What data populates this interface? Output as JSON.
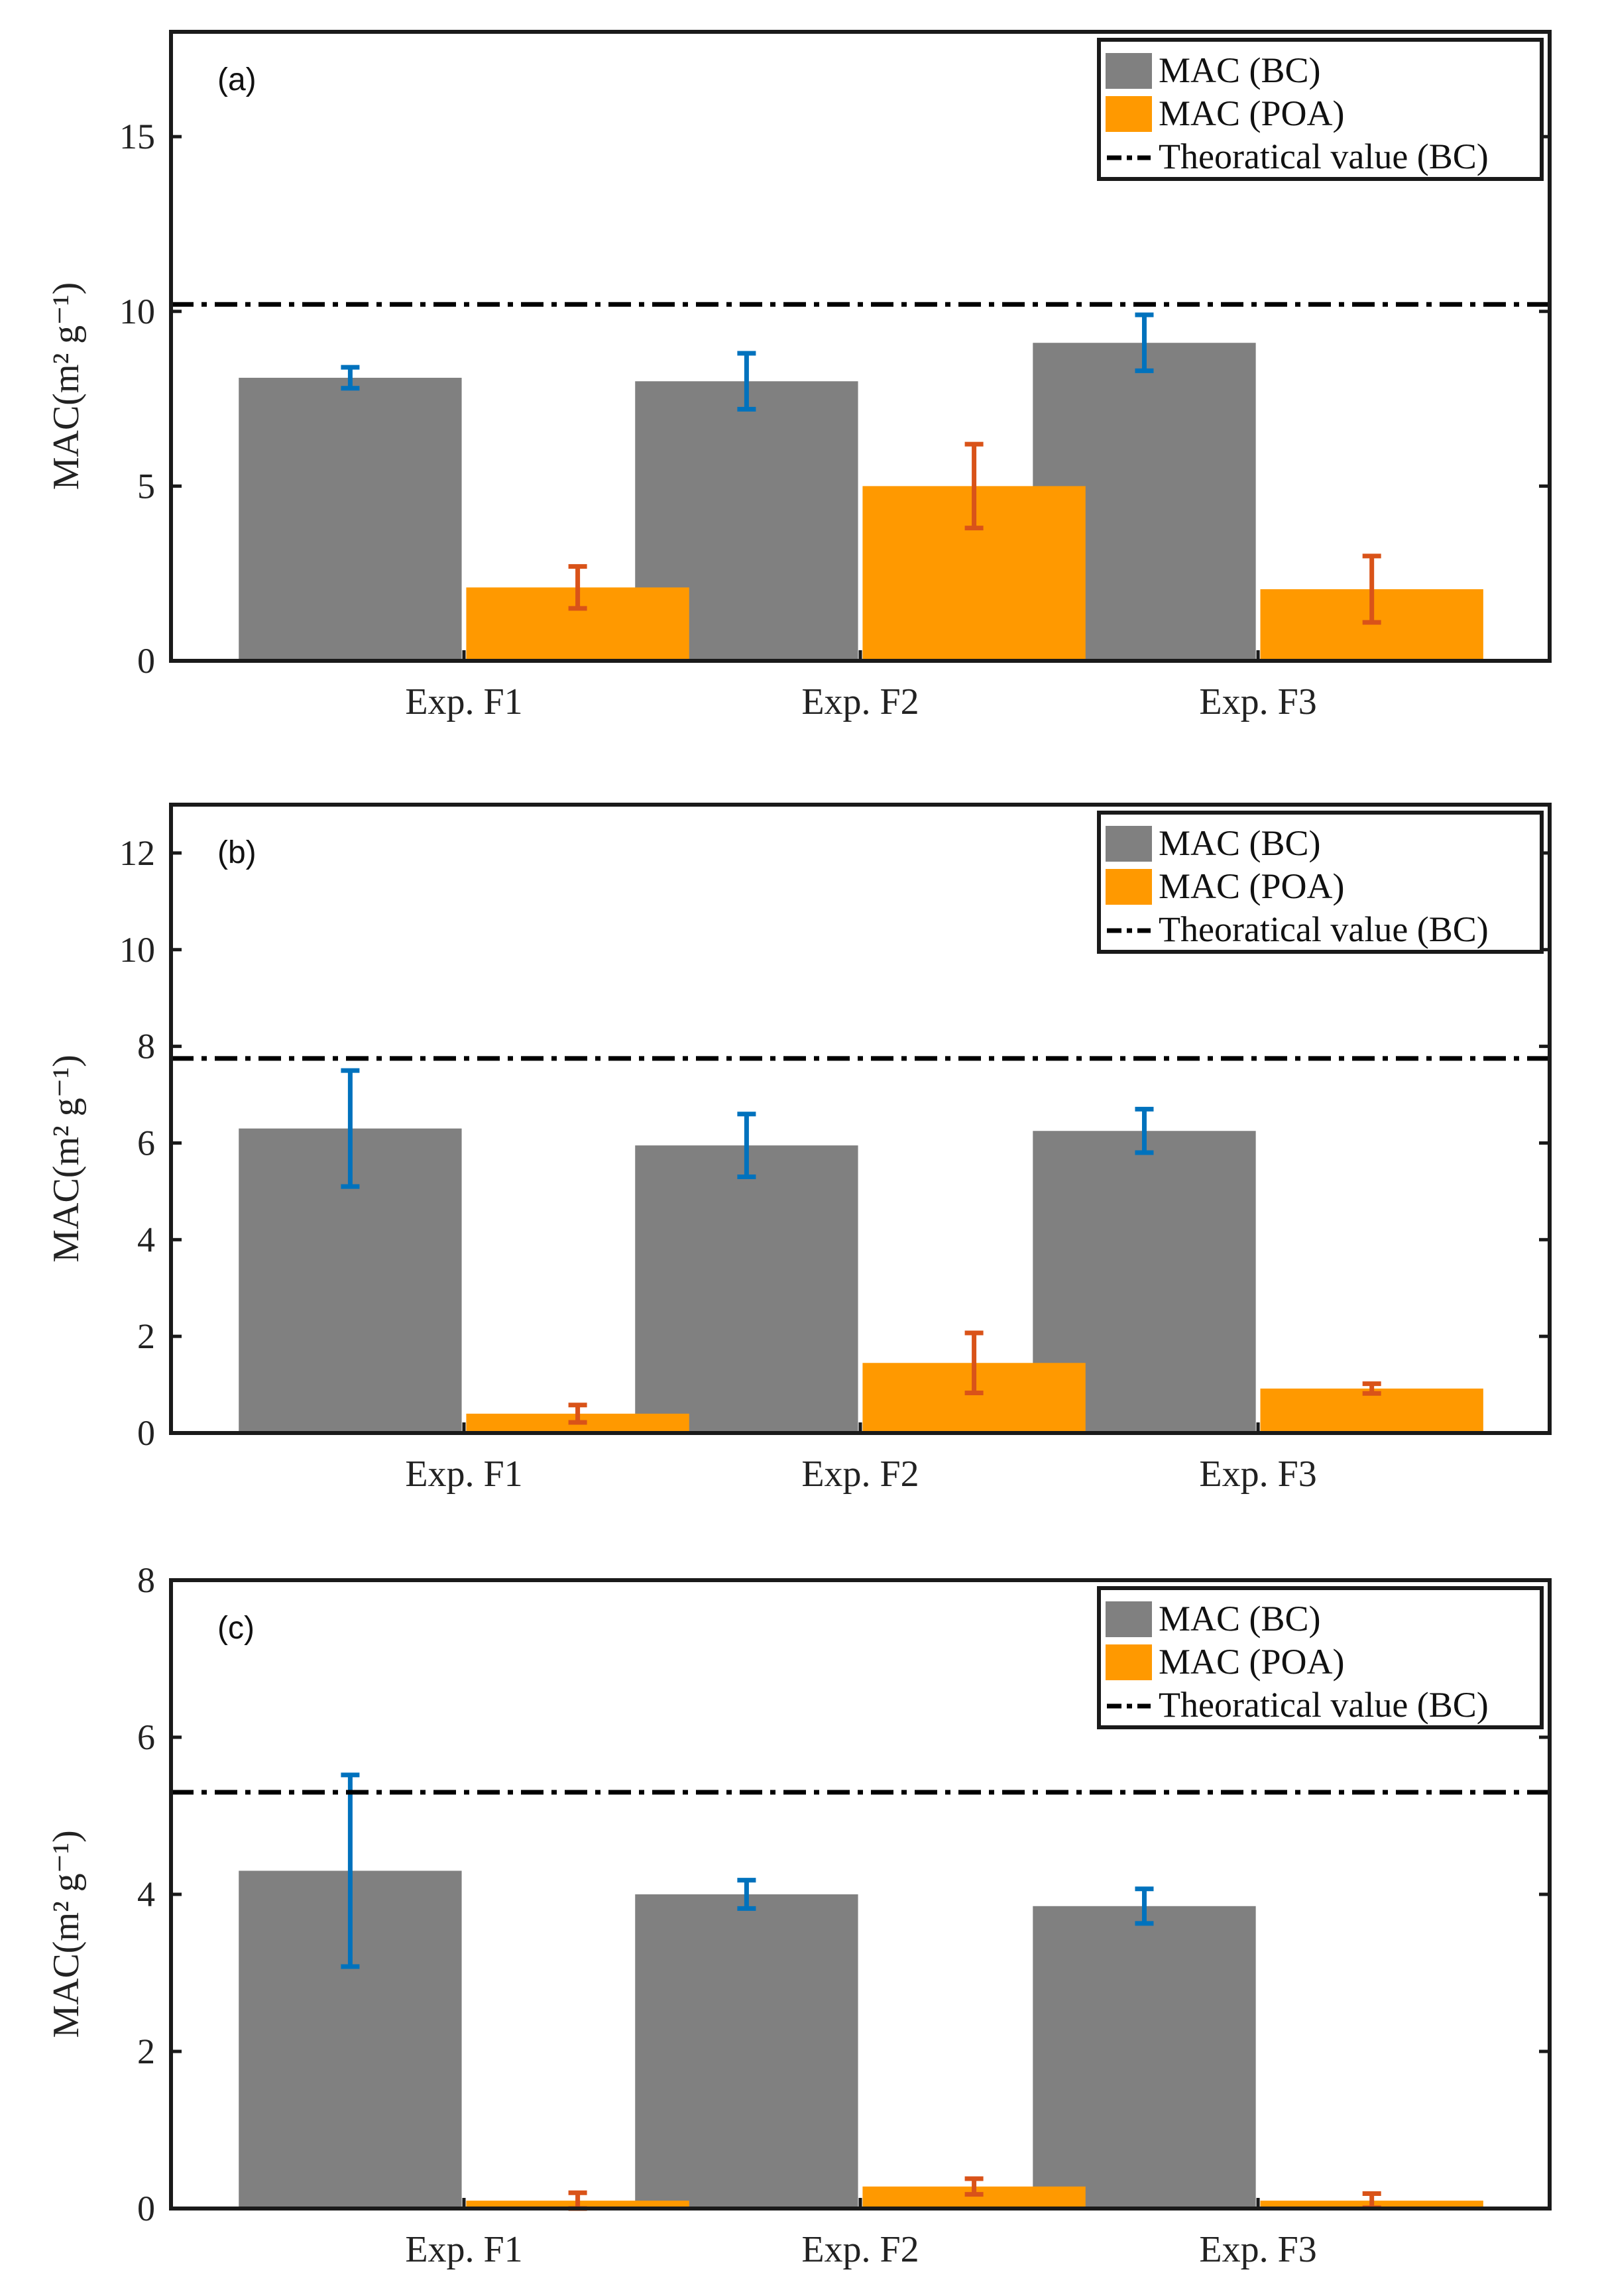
{
  "chart_data": [
    {
      "type": "bar",
      "panel_label": "(a)",
      "categories": [
        "Exp. F1",
        "Exp. F2",
        "Exp. F3"
      ],
      "ylabel": "MAC(m² g⁻¹)",
      "ylim": [
        0,
        18
      ],
      "yticks": [
        "0",
        "5",
        "10",
        "15"
      ],
      "ytick_values": [
        0,
        5,
        10,
        15
      ],
      "reference_line": {
        "name": "Theoratical value (BC)",
        "value": 10.2
      },
      "series": [
        {
          "name": "MAC (BC)",
          "color": "#808080",
          "error_color": "#0072BD",
          "values": [
            8.1,
            8.0,
            9.1
          ],
          "errors": [
            0.3,
            0.8,
            0.8
          ]
        },
        {
          "name": "MAC (POA)",
          "color": "#FF9900",
          "error_color": "#D95319",
          "values": [
            2.1,
            5.0,
            2.05
          ],
          "errors": [
            0.6,
            1.2,
            0.95
          ]
        }
      ],
      "legend": [
        "MAC (BC)",
        "MAC (POA)",
        "Theoratical value (BC)"
      ],
      "legend_position": "top-right"
    },
    {
      "type": "bar",
      "panel_label": "(b)",
      "categories": [
        "Exp. F1",
        "Exp. F2",
        "Exp. F3"
      ],
      "ylabel": "MAC(m² g⁻¹)",
      "ylim": [
        0,
        13
      ],
      "yticks": [
        "0",
        "2",
        "4",
        "6",
        "8",
        "10",
        "12"
      ],
      "ytick_values": [
        0,
        2,
        4,
        6,
        8,
        10,
        12
      ],
      "reference_line": {
        "name": "Theoratical value (BC)",
        "value": 7.75
      },
      "series": [
        {
          "name": "MAC (BC)",
          "color": "#808080",
          "error_color": "#0072BD",
          "values": [
            6.3,
            5.95,
            6.25
          ],
          "errors": [
            1.2,
            0.65,
            0.45
          ]
        },
        {
          "name": "MAC (POA)",
          "color": "#FF9900",
          "error_color": "#D95319",
          "values": [
            0.4,
            1.45,
            0.92
          ],
          "errors": [
            0.18,
            0.62,
            0.1
          ]
        }
      ],
      "legend": [
        "MAC (BC)",
        "MAC (POA)",
        "Theoratical value (BC)"
      ],
      "legend_position": "top-right"
    },
    {
      "type": "bar",
      "panel_label": "(c)",
      "categories": [
        "Exp. F1",
        "Exp. F2",
        "Exp. F3"
      ],
      "ylabel": "MAC(m² g⁻¹)",
      "ylim": [
        0,
        8
      ],
      "yticks": [
        "0",
        "2",
        "4",
        "6",
        "8"
      ],
      "ytick_values": [
        0,
        2,
        4,
        6,
        8
      ],
      "reference_line": {
        "name": "Theoratical value (BC)",
        "value": 5.3
      },
      "series": [
        {
          "name": "MAC (BC)",
          "color": "#808080",
          "error_color": "#0072BD",
          "values": [
            4.3,
            4.0,
            3.85
          ],
          "errors": [
            1.22,
            0.18,
            0.22
          ]
        },
        {
          "name": "MAC (POA)",
          "color": "#FF9900",
          "error_color": "#D95319",
          "values": [
            0.1,
            0.28,
            0.1
          ],
          "errors": [
            0.1,
            0.1,
            0.09
          ]
        }
      ],
      "legend": [
        "MAC (BC)",
        "MAC (POA)",
        "Theoratical value (BC)"
      ],
      "legend_position": "top-right"
    }
  ]
}
